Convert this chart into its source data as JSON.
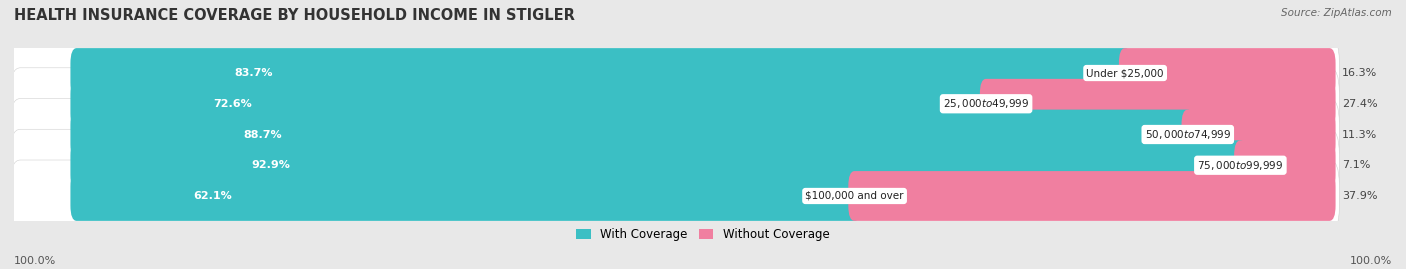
{
  "title": "HEALTH INSURANCE COVERAGE BY HOUSEHOLD INCOME IN STIGLER",
  "source": "Source: ZipAtlas.com",
  "categories": [
    "Under $25,000",
    "$25,000 to $49,999",
    "$50,000 to $74,999",
    "$75,000 to $99,999",
    "$100,000 and over"
  ],
  "with_coverage": [
    83.7,
    72.6,
    88.7,
    92.9,
    62.1
  ],
  "without_coverage": [
    16.3,
    27.4,
    11.3,
    7.1,
    37.9
  ],
  "coverage_color": "#3BBFC4",
  "no_coverage_color": "#F07FA0",
  "background_color": "#e8e8e8",
  "bar_bg_color": "#f5f5f5",
  "legend_coverage": "With Coverage",
  "legend_no_coverage": "Without Coverage",
  "left_label": "100.0%",
  "right_label": "100.0%",
  "title_fontsize": 10.5,
  "source_fontsize": 7.5,
  "bar_label_fontsize": 8,
  "cat_label_fontsize": 7.5,
  "bar_height": 0.62,
  "total_width": 100.0,
  "xlim_left": -5,
  "xlim_right": 105
}
